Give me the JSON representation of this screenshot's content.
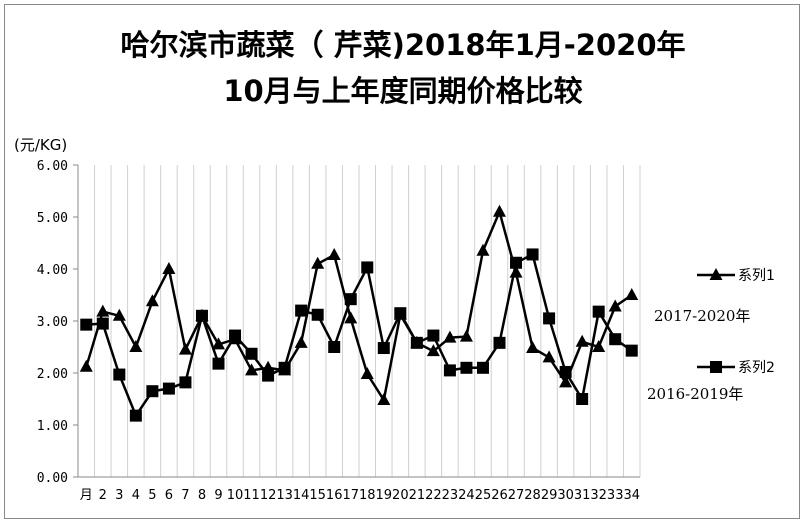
{
  "chart_data": {
    "type": "line",
    "title": "哈尔滨市蔬菜（ 芹菜)2018年1月-2020年",
    "subtitle": "10月与上年度同期价格比较",
    "ylabel": "(元/KG)",
    "xlabel": "",
    "ylim": [
      0,
      6
    ],
    "yticks": [
      "0.00",
      "1.00",
      "2.00",
      "3.00",
      "4.00",
      "5.00",
      "6.00"
    ],
    "x": [
      "月",
      "2",
      "3",
      "4",
      "5",
      "6",
      "7",
      "8",
      "9",
      "10",
      "11",
      "12",
      "13",
      "14",
      "15",
      "16",
      "17",
      "18",
      "19",
      "20",
      "21",
      "22",
      "23",
      "24",
      "25",
      "26",
      "27",
      "28",
      "29",
      "30",
      "31",
      "32",
      "33",
      "34"
    ],
    "grid": "vertical",
    "legend_position": "right",
    "series": [
      {
        "name": "系列1",
        "marker": "triangle",
        "values": [
          2.12,
          3.18,
          3.1,
          2.5,
          3.38,
          4.0,
          2.45,
          3.1,
          2.55,
          2.65,
          2.05,
          2.1,
          2.05,
          2.58,
          4.1,
          4.27,
          3.05,
          1.98,
          1.48,
          3.12,
          2.58,
          2.42,
          2.68,
          2.7,
          4.35,
          5.1,
          3.93,
          2.48,
          2.3,
          1.82,
          2.6,
          2.5,
          3.28,
          3.5
        ]
      },
      {
        "name": "系列2",
        "marker": "square",
        "values": [
          2.93,
          2.95,
          1.97,
          1.18,
          1.65,
          1.7,
          1.82,
          3.1,
          2.18,
          2.72,
          2.37,
          1.95,
          2.1,
          3.2,
          3.12,
          2.5,
          3.42,
          4.03,
          2.48,
          3.15,
          2.58,
          2.72,
          2.05,
          2.1,
          2.1,
          2.58,
          4.12,
          4.28,
          3.05,
          2.02,
          1.5,
          3.18,
          2.65,
          2.43
        ]
      }
    ]
  },
  "annotations": {
    "series1_note": "2017-2020年",
    "series2_note": "2016-2019年"
  },
  "colors": {
    "line": "#000000",
    "grid": "#d0d0d0",
    "axis": "#888888"
  }
}
